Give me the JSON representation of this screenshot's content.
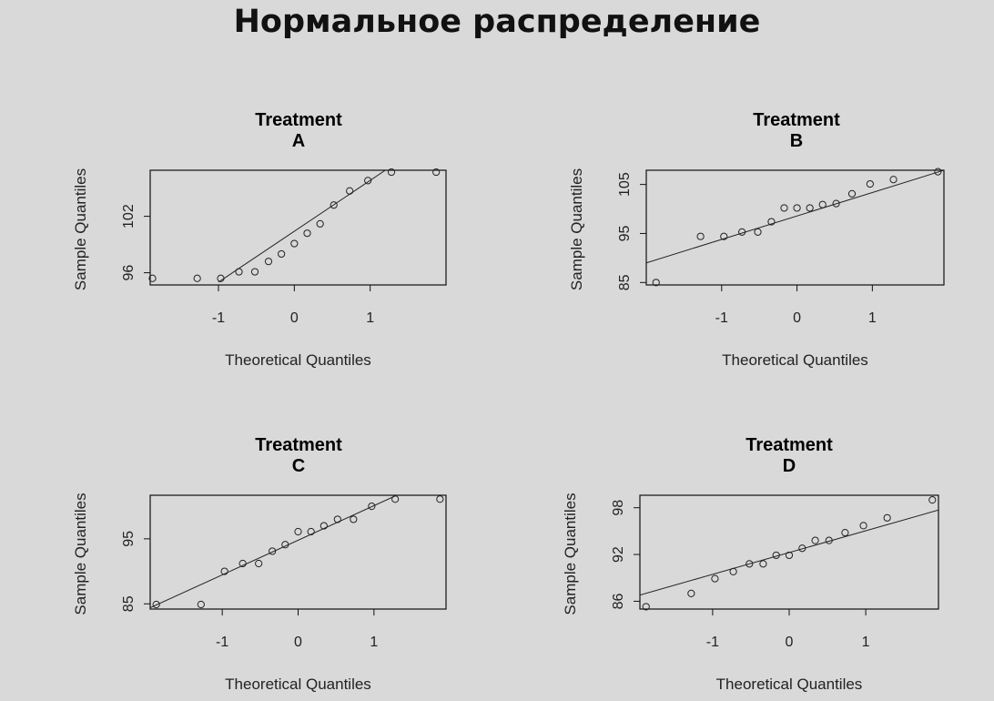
{
  "slide": {
    "title": "Нормальное распределение"
  },
  "chart_data": [
    {
      "type": "scatter",
      "title": "Treatment\nA",
      "xlabel": "Theoretical Quantiles",
      "ylabel": "Sample Quantiles",
      "xlim": [
        -1.9,
        2.0
      ],
      "ylim": [
        94.7,
        106.9
      ],
      "xticks": [
        -1,
        0,
        1
      ],
      "yticks": [
        96,
        102
      ],
      "x": [
        -1.87,
        -1.28,
        -0.97,
        -0.73,
        -0.52,
        -0.34,
        -0.17,
        0.0,
        0.17,
        0.34,
        0.52,
        0.73,
        0.97,
        1.28,
        1.87
      ],
      "y": [
        95.4,
        95.4,
        95.4,
        96.1,
        96.1,
        97.2,
        98.0,
        99.1,
        100.2,
        101.2,
        103.2,
        104.7,
        105.8,
        106.7,
        106.7
      ],
      "reference_line": {
        "x": [
          -1.0,
          1.2
        ],
        "y": [
          95.0,
          106.9
        ]
      }
    },
    {
      "type": "scatter",
      "title": "Treatment\nB",
      "xlabel": "Theoretical Quantiles",
      "ylabel": "Sample Quantiles",
      "xlim": [
        -2.0,
        1.95
      ],
      "ylim": [
        84.5,
        107.9
      ],
      "xticks": [
        -1,
        0,
        1
      ],
      "yticks": [
        85,
        95,
        105
      ],
      "x": [
        -1.87,
        -1.28,
        -0.97,
        -0.73,
        -0.52,
        -0.34,
        -0.17,
        0.0,
        0.17,
        0.34,
        0.52,
        0.73,
        0.97,
        1.28,
        1.87
      ],
      "y": [
        85.0,
        94.4,
        94.4,
        95.3,
        95.3,
        97.4,
        100.2,
        100.2,
        100.2,
        100.9,
        101.1,
        103.1,
        105.1,
        106.0,
        107.6
      ],
      "reference_line": {
        "x": [
          -2.0,
          1.95
        ],
        "y": [
          89.0,
          107.9
        ]
      }
    },
    {
      "type": "scatter",
      "title": "Treatment\nC",
      "xlabel": "Theoretical Quantiles",
      "ylabel": "Sample Quantiles",
      "xlim": [
        -1.95,
        1.95
      ],
      "ylim": [
        84.2,
        101.7
      ],
      "xticks": [
        -1,
        0,
        1
      ],
      "yticks": [
        85,
        95
      ],
      "x": [
        -1.87,
        -1.28,
        -0.97,
        -0.73,
        -0.52,
        -0.34,
        -0.17,
        0.0,
        0.17,
        0.34,
        0.52,
        0.73,
        0.97,
        1.28,
        1.87
      ],
      "y": [
        84.9,
        84.9,
        90.0,
        91.2,
        91.2,
        93.1,
        94.1,
        96.1,
        96.1,
        97.0,
        98.0,
        98.0,
        100.0,
        101.1,
        101.1
      ],
      "reference_line": {
        "x": [
          -1.95,
          1.3
        ],
        "y": [
          84.4,
          101.7
        ]
      }
    },
    {
      "type": "scatter",
      "title": "Treatment\nD",
      "xlabel": "Theoretical Quantiles",
      "ylabel": "Sample Quantiles",
      "xlim": [
        -1.95,
        1.95
      ],
      "ylim": [
        85.0,
        99.6
      ],
      "xticks": [
        -1,
        0,
        1
      ],
      "yticks": [
        86,
        92,
        98
      ],
      "x": [
        -1.87,
        -1.28,
        -0.97,
        -0.73,
        -0.52,
        -0.34,
        -0.17,
        0.0,
        0.17,
        0.34,
        0.52,
        0.73,
        0.97,
        1.28,
        1.87
      ],
      "y": [
        85.3,
        87.0,
        88.9,
        89.8,
        90.8,
        90.8,
        91.9,
        91.9,
        92.8,
        93.8,
        93.8,
        94.8,
        95.7,
        96.7,
        99.0
      ],
      "reference_line": {
        "x": [
          -1.95,
          1.95
        ],
        "y": [
          86.8,
          97.7
        ]
      }
    }
  ]
}
